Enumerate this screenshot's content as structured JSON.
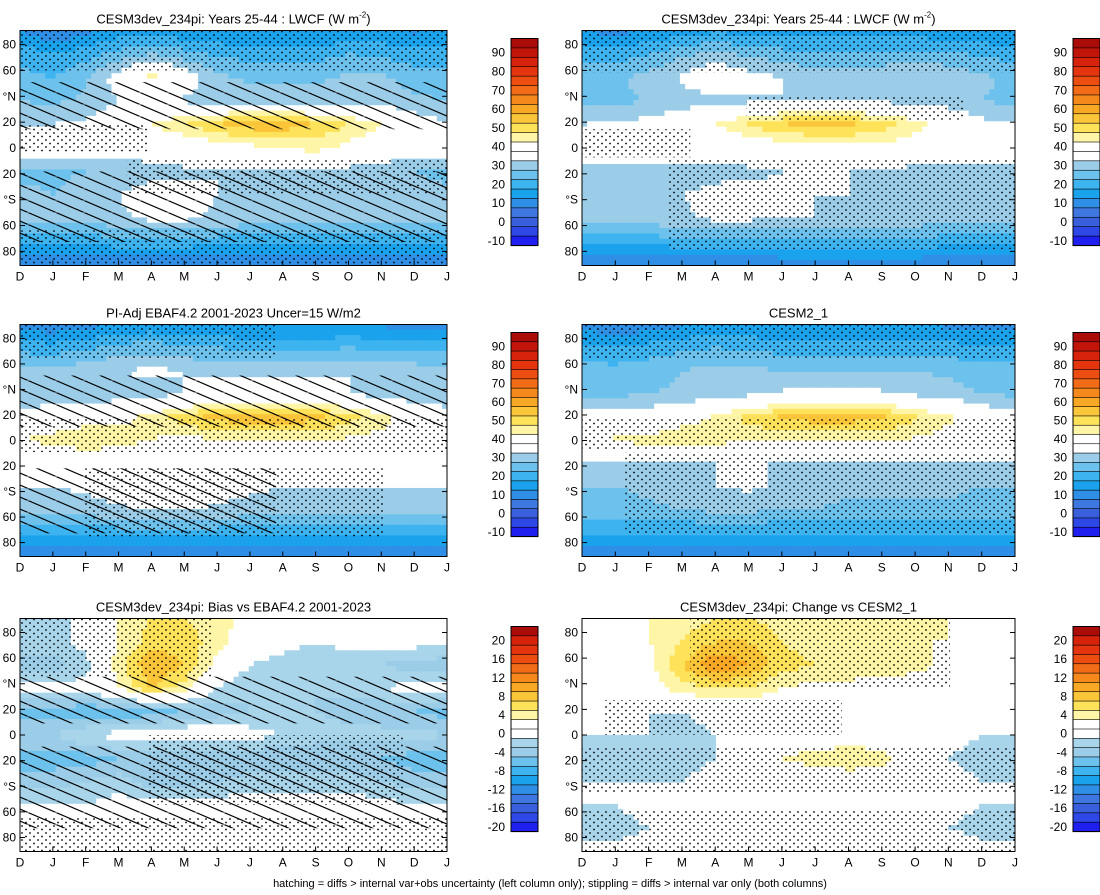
{
  "figure": {
    "footer": "hatching = diffs > internal var+obs uncertainty (left column only); stippling = diffs > internal var only (both columns)"
  },
  "chart_data": [
    {
      "type": "heatmap",
      "title": "CESM3dev_234pi: Years 25-44 : LWCF (W m-2)",
      "title_main": "CESM3dev_234pi: Years 25-44 : LWCF (W m",
      "title_sup": "-2",
      "title_end": ")",
      "scale": "abs",
      "hatching": true,
      "stippling": true,
      "x": [
        "D",
        "J",
        "F",
        "M",
        "A",
        "M",
        "J",
        "J",
        "A",
        "S",
        "O",
        "N",
        "D",
        "J"
      ],
      "y_ticks": [
        "80",
        "60",
        "°N",
        "20",
        "0",
        "20",
        "°S",
        "60",
        "80"
      ],
      "grid": [
        [
          10,
          5,
          8,
          12,
          12,
          11,
          10,
          10,
          9,
          9,
          10,
          10,
          9,
          10
        ],
        [
          18,
          15,
          18,
          22,
          25,
          22,
          19,
          18,
          18,
          18,
          20,
          19,
          17,
          18
        ],
        [
          22,
          20,
          24,
          33,
          42,
          34,
          26,
          24,
          24,
          24,
          26,
          26,
          23,
          22
        ],
        [
          25,
          24,
          26,
          30,
          30,
          29,
          28,
          28,
          28,
          28,
          28,
          28,
          26,
          25
        ],
        [
          30,
          30,
          31,
          36,
          40,
          45,
          50,
          53,
          53,
          50,
          45,
          40,
          34,
          30
        ],
        [
          36,
          36,
          35,
          34,
          33,
          34,
          36,
          38,
          40,
          42,
          38,
          36,
          35,
          36
        ],
        [
          24,
          24,
          25,
          26,
          28,
          29,
          30,
          30,
          30,
          29,
          28,
          26,
          25,
          24
        ],
        [
          26,
          25,
          27,
          30,
          33,
          32,
          30,
          29,
          30,
          29,
          28,
          27,
          26,
          26
        ],
        [
          28,
          27,
          27,
          29,
          31,
          31,
          29,
          28,
          28,
          27,
          26,
          26,
          27,
          28
        ],
        [
          17,
          16,
          17,
          18,
          18,
          18,
          17,
          17,
          17,
          17,
          17,
          17,
          17,
          17
        ],
        [
          5,
          4,
          4,
          4,
          4,
          4,
          5,
          5,
          5,
          5,
          5,
          5,
          5,
          5
        ]
      ]
    },
    {
      "type": "heatmap",
      "title": "CESM3dev_234pi: Years 25-44 : LWCF (W m-2)",
      "title_main": "CESM3dev_234pi: Years 25-44 : LWCF (W m",
      "title_sup": "-2",
      "title_end": ")",
      "scale": "abs",
      "hatching": false,
      "stippling": true,
      "x": [
        "D",
        "J",
        "F",
        "M",
        "A",
        "M",
        "J",
        "J",
        "A",
        "S",
        "O",
        "N",
        "D",
        "J"
      ],
      "y_ticks": [
        "80",
        "60",
        "°N",
        "20",
        "0",
        "20",
        "°S",
        "60",
        "80"
      ],
      "grid": [
        [
          10,
          8,
          10,
          12,
          14,
          13,
          12,
          12,
          12,
          12,
          12,
          11,
          10,
          10
        ],
        [
          18,
          17,
          20,
          24,
          26,
          24,
          22,
          21,
          21,
          21,
          22,
          21,
          19,
          18
        ],
        [
          24,
          24,
          27,
          31,
          36,
          32,
          30,
          28,
          28,
          29,
          30,
          29,
          26,
          24
        ],
        [
          24,
          24,
          25,
          27,
          28,
          29,
          30,
          30,
          30,
          29,
          28,
          27,
          25,
          24
        ],
        [
          30,
          31,
          32,
          35,
          40,
          46,
          50,
          52,
          51,
          48,
          42,
          37,
          32,
          30
        ],
        [
          38,
          38,
          37,
          35,
          34,
          34,
          36,
          37,
          38,
          38,
          36,
          36,
          37,
          38
        ],
        [
          25,
          25,
          26,
          27,
          28,
          29,
          30,
          30,
          30,
          29,
          28,
          27,
          26,
          25
        ],
        [
          27,
          27,
          28,
          30,
          32,
          32,
          31,
          30,
          30,
          30,
          29,
          28,
          27,
          27
        ],
        [
          27,
          27,
          28,
          29,
          31,
          31,
          30,
          30,
          29,
          29,
          28,
          28,
          27,
          27
        ],
        [
          17,
          17,
          17,
          18,
          18,
          18,
          18,
          18,
          18,
          18,
          18,
          17,
          17,
          17
        ],
        [
          6,
          5,
          5,
          5,
          5,
          5,
          6,
          6,
          6,
          6,
          6,
          6,
          6,
          6
        ]
      ]
    },
    {
      "type": "heatmap",
      "title": "PI-Adj EBAF4.2 2001-2023 Uncer=15 W/m2",
      "scale": "abs",
      "hatching": true,
      "stippling": true,
      "x": [
        "D",
        "J",
        "F",
        "M",
        "A",
        "M",
        "J",
        "J",
        "A",
        "S",
        "O",
        "N",
        "D",
        "J"
      ],
      "y_ticks": [
        "80",
        "60",
        "°N",
        "20",
        "0",
        "20",
        "°S",
        "60",
        "80"
      ],
      "grid": [
        [
          8,
          6,
          8,
          10,
          11,
          10,
          9,
          9,
          9,
          9,
          9,
          9,
          8,
          8
        ],
        [
          18,
          17,
          19,
          22,
          23,
          21,
          20,
          19,
          19,
          19,
          20,
          19,
          18,
          18
        ],
        [
          27,
          27,
          28,
          30,
          31,
          30,
          29,
          29,
          29,
          29,
          30,
          29,
          28,
          27
        ],
        [
          25,
          25,
          26,
          27,
          28,
          30,
          32,
          33,
          33,
          32,
          30,
          28,
          26,
          25
        ],
        [
          34,
          35,
          36,
          38,
          42,
          48,
          52,
          54,
          54,
          52,
          47,
          42,
          37,
          34
        ],
        [
          40,
          42,
          46,
          43,
          40,
          38,
          39,
          40,
          40,
          40,
          39,
          38,
          39,
          40
        ],
        [
          30,
          30,
          31,
          31,
          31,
          31,
          31,
          31,
          31,
          31,
          31,
          31,
          30,
          30
        ],
        [
          30,
          30,
          31,
          33,
          38,
          37,
          33,
          31,
          30,
          30,
          30,
          30,
          30,
          30
        ],
        [
          27,
          27,
          28,
          29,
          30,
          30,
          29,
          28,
          28,
          28,
          28,
          28,
          27,
          27
        ],
        [
          17,
          17,
          17,
          17,
          17,
          17,
          17,
          17,
          17,
          17,
          17,
          17,
          17,
          17
        ],
        [
          6,
          6,
          6,
          6,
          6,
          6,
          6,
          6,
          6,
          6,
          6,
          6,
          6,
          6
        ]
      ]
    },
    {
      "type": "heatmap",
      "title": "CESM2_1",
      "scale": "abs",
      "hatching": false,
      "stippling": true,
      "x": [
        "D",
        "J",
        "F",
        "M",
        "A",
        "M",
        "J",
        "J",
        "A",
        "S",
        "O",
        "N",
        "D",
        "J"
      ],
      "y_ticks": [
        "80",
        "60",
        "°N",
        "20",
        "0",
        "20",
        "°S",
        "60",
        "80"
      ],
      "grid": [
        [
          8,
          6,
          7,
          9,
          10,
          10,
          10,
          10,
          10,
          10,
          10,
          9,
          8,
          8
        ],
        [
          16,
          15,
          17,
          19,
          20,
          19,
          18,
          18,
          18,
          18,
          18,
          17,
          16,
          16
        ],
        [
          22,
          22,
          23,
          25,
          27,
          26,
          25,
          24,
          24,
          25,
          25,
          24,
          23,
          22
        ],
        [
          24,
          24,
          25,
          26,
          27,
          29,
          31,
          32,
          32,
          31,
          29,
          27,
          25,
          24
        ],
        [
          32,
          33,
          34,
          37,
          41,
          47,
          51,
          53,
          53,
          51,
          46,
          41,
          36,
          32
        ],
        [
          40,
          41,
          42,
          44,
          42,
          40,
          40,
          40,
          40,
          40,
          39,
          38,
          39,
          40
        ],
        [
          28,
          28,
          29,
          29,
          30,
          30,
          30,
          30,
          30,
          30,
          30,
          30,
          29,
          28
        ],
        [
          25,
          25,
          26,
          27,
          30,
          31,
          29,
          27,
          26,
          26,
          26,
          26,
          25,
          25
        ],
        [
          23,
          23,
          24,
          25,
          26,
          26,
          25,
          25,
          24,
          24,
          24,
          24,
          23,
          23
        ],
        [
          15,
          15,
          15,
          15,
          15,
          15,
          15,
          15,
          15,
          15,
          15,
          15,
          15,
          15
        ],
        [
          5,
          5,
          5,
          5,
          5,
          5,
          5,
          5,
          5,
          5,
          5,
          5,
          5,
          5
        ]
      ]
    },
    {
      "type": "heatmap",
      "title": "CESM3dev_234pi: Bias vs EBAF4.2 2001-2023",
      "scale": "diff",
      "hatching": true,
      "stippling": true,
      "x": [
        "D",
        "J",
        "F",
        "M",
        "A",
        "M",
        "J",
        "J",
        "A",
        "S",
        "O",
        "N",
        "D",
        "J"
      ],
      "y_ticks": [
        "80",
        "60",
        "°N",
        "20",
        "0",
        "20",
        "°S",
        "60",
        "80"
      ],
      "grid": [
        [
          -2,
          -3,
          -1,
          2,
          4,
          4,
          3,
          1,
          0,
          -1,
          -1,
          -1,
          -1,
          -2
        ],
        [
          -2,
          -3,
          -1,
          2,
          5,
          5,
          3,
          0,
          -1,
          -2,
          -1,
          -1,
          -1,
          -2
        ],
        [
          -5,
          -5,
          -3,
          3,
          8,
          6,
          1,
          -2,
          -3,
          -4,
          -4,
          -4,
          -5,
          -5
        ],
        [
          -1,
          -1,
          -1,
          2,
          6,
          3,
          -2,
          -4,
          -4,
          -4,
          -3,
          -2,
          -1,
          -1
        ],
        [
          -7,
          -7,
          -8,
          -8,
          -7,
          -6,
          -5,
          -4,
          -4,
          -4,
          -5,
          -6,
          -6,
          -7
        ],
        [
          -4,
          -4,
          -2,
          -1,
          -1,
          0,
          0,
          -1,
          -2,
          -3,
          -3,
          -3,
          -3,
          -4
        ],
        [
          -7,
          -7,
          -7,
          -6,
          -6,
          -6,
          -6,
          -6,
          -6,
          -6,
          -6,
          -6,
          -7,
          -7
        ],
        [
          -5,
          -5,
          -4,
          -3,
          -5,
          -5,
          -4,
          -3,
          -3,
          -3,
          -3,
          -4,
          -5,
          -5
        ],
        [
          -2,
          -2,
          -2,
          -1,
          -1,
          -1,
          -1,
          -1,
          -1,
          -1,
          -1,
          -1,
          -2,
          -2
        ],
        [
          2,
          2,
          1,
          0,
          0,
          0,
          0,
          1,
          1,
          1,
          1,
          2,
          2,
          2
        ],
        [
          -2,
          -2,
          -1,
          -1,
          0,
          0,
          -1,
          -1,
          -1,
          -1,
          -1,
          -1,
          -2,
          -2
        ]
      ]
    },
    {
      "type": "heatmap",
      "title": "CESM3dev_234pi: Change vs CESM2_1",
      "scale": "diff",
      "hatching": false,
      "stippling": true,
      "x": [
        "D",
        "J",
        "F",
        "M",
        "A",
        "M",
        "J",
        "J",
        "A",
        "S",
        "O",
        "N",
        "D",
        "J"
      ],
      "y_ticks": [
        "80",
        "60",
        "°N",
        "20",
        "0",
        "20",
        "°S",
        "60",
        "80"
      ],
      "grid": [
        [
          1,
          1,
          2,
          3,
          4,
          4,
          3,
          3,
          3,
          2,
          2,
          2,
          1,
          1
        ],
        [
          1,
          1,
          2,
          4,
          6,
          6,
          4,
          3,
          3,
          3,
          2,
          2,
          1,
          1
        ],
        [
          -2,
          -2,
          1,
          6,
          10,
          8,
          5,
          4,
          4,
          4,
          3,
          1,
          -1,
          -2
        ],
        [
          0,
          0,
          1,
          3,
          4,
          4,
          2,
          1,
          1,
          0,
          0,
          0,
          0,
          0
        ],
        [
          -2,
          -2,
          -2,
          -2,
          -1,
          -1,
          -1,
          -1,
          -2,
          -2,
          -2,
          -2,
          -2,
          -2
        ],
        [
          -2,
          -2,
          -2,
          -3,
          -2,
          -1,
          0,
          0,
          0,
          0,
          -1,
          -1,
          -2,
          -2
        ],
        [
          -3,
          -3,
          -3,
          -3,
          -2,
          -1,
          2,
          3,
          4,
          3,
          -1,
          -2,
          -3,
          -3
        ],
        [
          -2,
          -2,
          -2,
          -2,
          -1,
          0,
          0,
          0,
          0,
          0,
          -1,
          -1,
          -2,
          -2
        ],
        [
          -2,
          -2,
          -1,
          -1,
          0,
          0,
          0,
          0,
          -1,
          -1,
          -1,
          -1,
          -2,
          -2
        ],
        [
          -3,
          -3,
          -2,
          -2,
          -1,
          -1,
          -1,
          -2,
          -2,
          -2,
          -2,
          -2,
          -3,
          -3
        ],
        [
          -1,
          -1,
          -1,
          0,
          0,
          0,
          0,
          0,
          0,
          0,
          0,
          0,
          -1,
          -1
        ]
      ]
    }
  ],
  "colorbars": {
    "abs": {
      "labels": [
        "90",
        "80",
        "70",
        "60",
        "50",
        "40",
        "30",
        "20",
        "10",
        "0",
        "-10"
      ],
      "levels": [
        -15,
        -10,
        -5,
        0,
        5,
        10,
        15,
        20,
        25,
        30,
        35,
        40,
        45,
        50,
        55,
        60,
        65,
        70,
        75,
        80,
        85,
        90,
        95
      ],
      "colors": [
        "#1f1ff0",
        "#2e48e8",
        "#3a5fdc",
        "#3f77e0",
        "#2f8ee6",
        "#1aa2ec",
        "#3db3f0",
        "#6dc2ed",
        "#9ccde8",
        "#ffffff",
        "#ffffff",
        "#fff5a6",
        "#fde25a",
        "#fbc53a",
        "#f9a825",
        "#f6891c",
        "#f26b16",
        "#ec4e12",
        "#e4350f",
        "#d7230c",
        "#c2150a",
        "#aa0c08"
      ]
    },
    "diff": {
      "labels": [
        "20",
        "16",
        "12",
        "8",
        "4",
        "0",
        "-4",
        "-8",
        "-12",
        "-16",
        "-20"
      ],
      "levels": [
        -22,
        -20,
        -18,
        -16,
        -14,
        -12,
        -10,
        -8,
        -6,
        -4,
        -2,
        0,
        2,
        4,
        6,
        8,
        10,
        12,
        14,
        16,
        18,
        20,
        22
      ],
      "colors": [
        "#1f1ff0",
        "#2e48e8",
        "#3a5fdc",
        "#3f77e0",
        "#2f8ee6",
        "#1aa2ec",
        "#3db3f0",
        "#6dc2ed",
        "#9ccde8",
        "#a9d5eb",
        "#ffffff",
        "#ffffff",
        "#fff5a6",
        "#fde25a",
        "#fbc53a",
        "#f9a825",
        "#f6891c",
        "#f26b16",
        "#ec4e12",
        "#e4350f",
        "#d7230c",
        "#aa0c08"
      ]
    }
  }
}
